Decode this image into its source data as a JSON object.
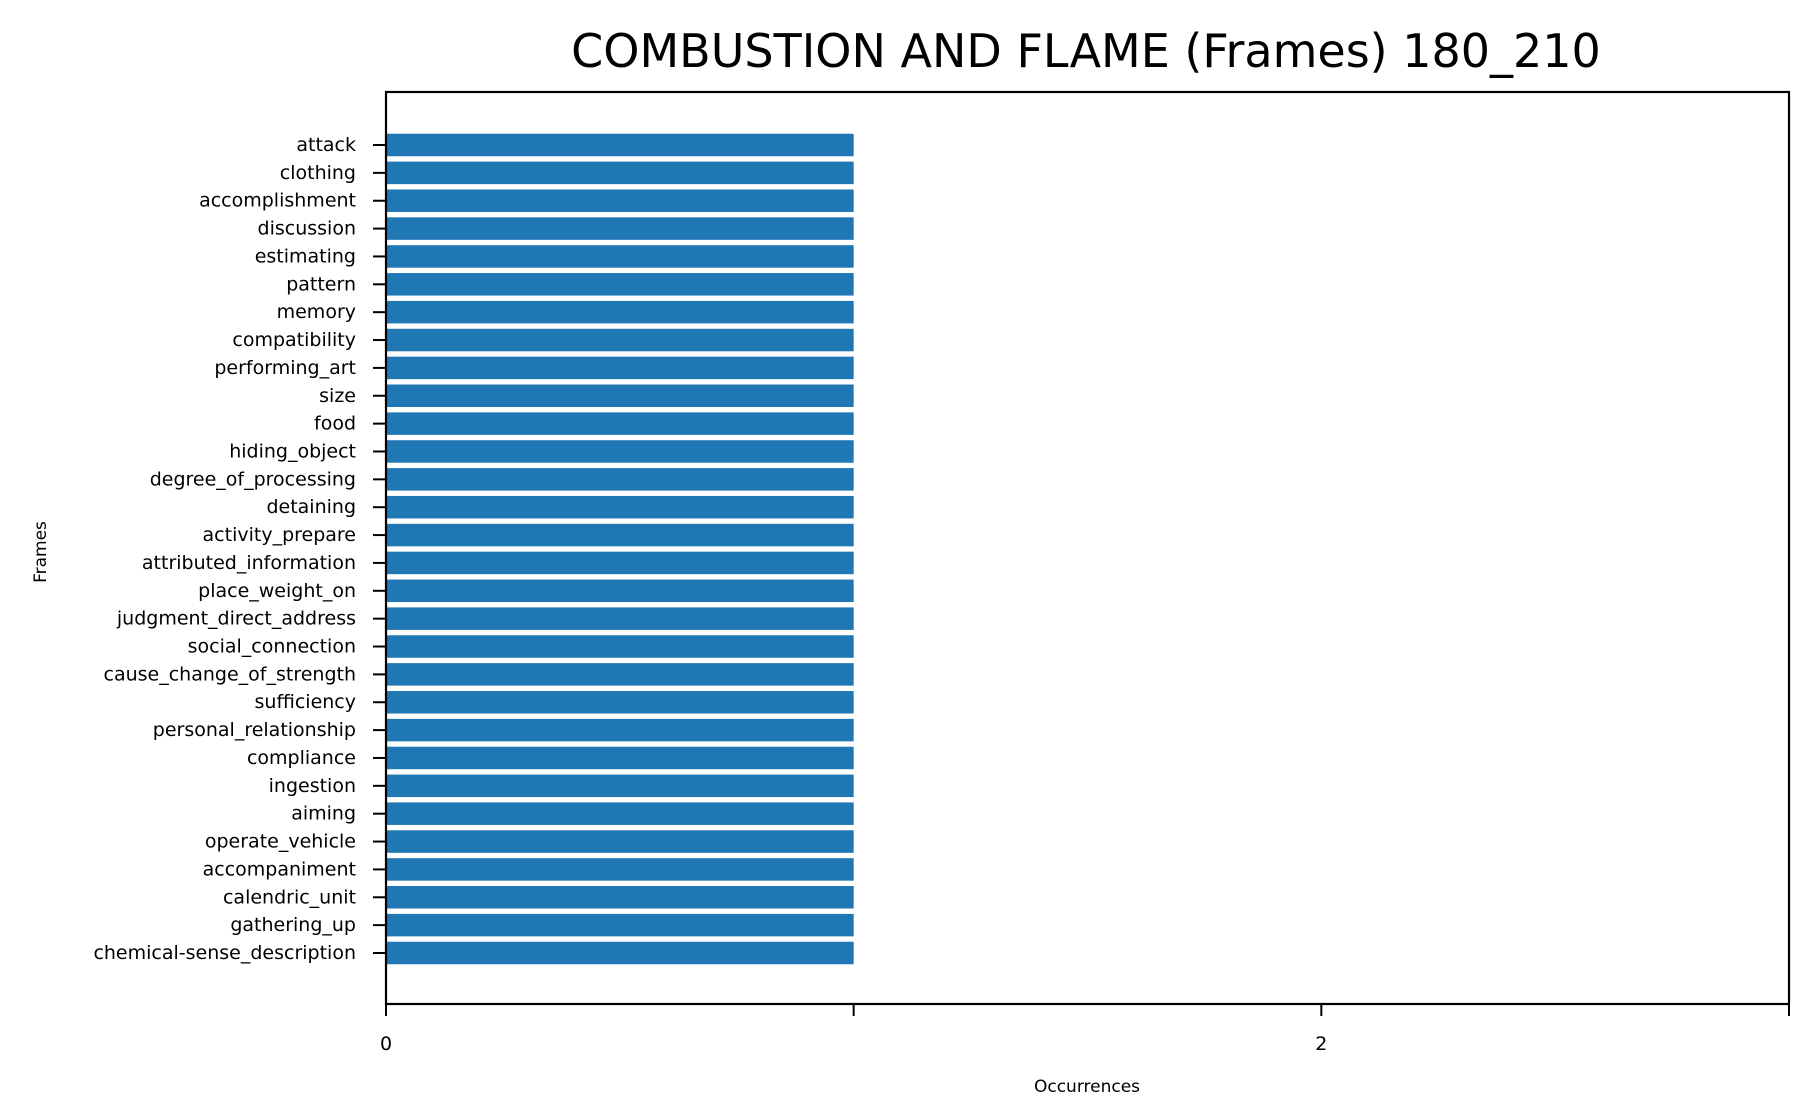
{
  "chart_data": {
    "type": "bar",
    "orientation": "horizontal",
    "title": "COMBUSTION AND FLAME (Frames) 180_210",
    "xlabel": "Occurrences",
    "ylabel": "Frames",
    "xlim": [
      0,
      3
    ],
    "x_ticks": [
      0,
      1,
      2,
      3
    ],
    "x_tick_labels": [
      "0",
      "",
      "2",
      ""
    ],
    "grid": false,
    "legend": "none",
    "bar_color": "#1f77b4",
    "categories": [
      "attack",
      "clothing",
      "accomplishment",
      "discussion",
      "estimating",
      "pattern",
      "memory",
      "compatibility",
      "performing_art",
      "size",
      "food",
      "hiding_object",
      "degree_of_processing",
      "detaining",
      "activity_prepare",
      "attributed_information",
      "place_weight_on",
      "judgment_direct_address",
      "social_connection",
      "cause_change_of_strength",
      "sufficiency",
      "personal_relationship",
      "compliance",
      "ingestion",
      "aiming",
      "operate_vehicle",
      "accompaniment",
      "calendric_unit",
      "gathering_up",
      "chemical-sense_description"
    ],
    "values": [
      1,
      1,
      1,
      1,
      1,
      1,
      1,
      1,
      1,
      1,
      1,
      1,
      1,
      1,
      1,
      1,
      1,
      1,
      1,
      1,
      1,
      1,
      1,
      1,
      1,
      1,
      1,
      1,
      1,
      1
    ]
  }
}
